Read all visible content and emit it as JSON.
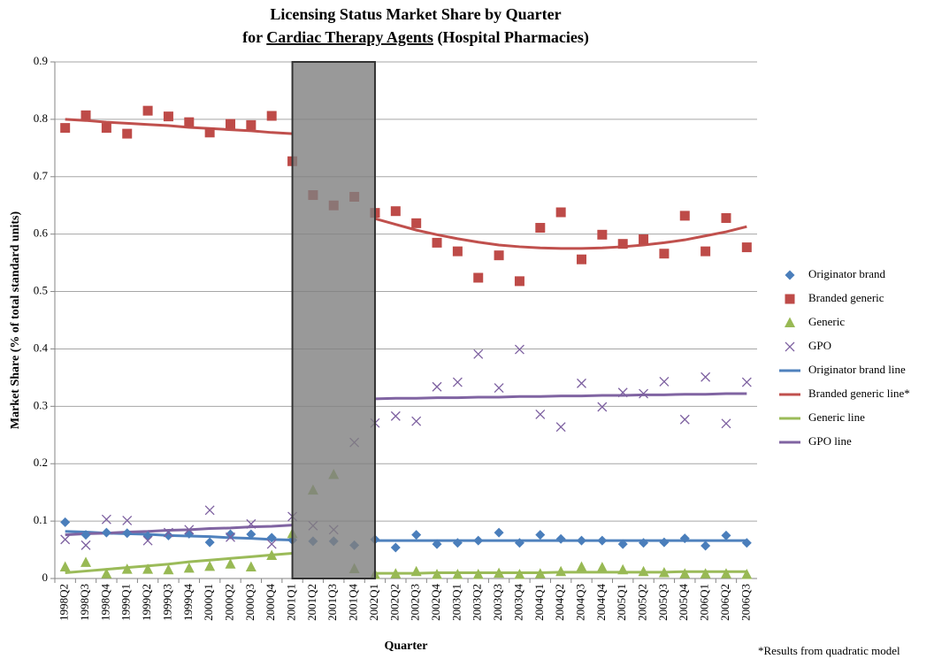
{
  "chart_data": {
    "type": "line",
    "title": "Licensing Status Market Share by Quarter",
    "subtitle_parts": [
      "for ",
      "Cardiac Therapy Agents",
      " (Hospital Pharmacies)"
    ],
    "x_label": "Quarter",
    "y_label": "Market Share (% of total standard units)",
    "footnote": "*Results from quadratic model",
    "categories": [
      "1998Q2",
      "1998Q3",
      "1998Q4",
      "1999Q1",
      "1999Q2",
      "1999Q3",
      "1999Q4",
      "2000Q1",
      "2000Q2",
      "2000Q3",
      "2000Q4",
      "2001Q1",
      "2001Q2",
      "2001Q3",
      "2001Q4",
      "2002Q1",
      "2002Q2",
      "2002Q3",
      "2002Q4",
      "2003Q1",
      "2003Q2",
      "2003Q3",
      "2003Q4",
      "2004Q1",
      "2004Q2",
      "2004Q3",
      "2004Q4",
      "2005Q1",
      "2005Q2",
      "2005Q3",
      "2005Q4",
      "2006Q1",
      "2006Q2",
      "2006Q3"
    ],
    "ylim": [
      0,
      0.9
    ],
    "yticks": [
      0,
      0.1,
      0.2,
      0.3,
      0.4,
      0.5,
      0.6,
      0.7,
      0.8,
      0.9
    ],
    "grid": true,
    "legend": "right",
    "highlight": {
      "from": "2001Q1",
      "to": "2002Q1",
      "color": "#808080"
    },
    "series": [
      {
        "name": "Originator brand",
        "marker": "diamond",
        "color": "#4a7ebb",
        "values": [
          0.098,
          0.076,
          0.08,
          0.079,
          0.074,
          0.075,
          0.078,
          0.063,
          0.077,
          0.077,
          0.071,
          0.067,
          0.065,
          0.065,
          0.058,
          0.068,
          0.054,
          0.076,
          0.06,
          0.062,
          0.066,
          0.08,
          0.062,
          0.076,
          0.069,
          0.066,
          0.066,
          0.06,
          0.062,
          0.063,
          0.07,
          0.057,
          0.075,
          0.062
        ]
      },
      {
        "name": "Branded generic",
        "marker": "square",
        "color": "#be4b48",
        "values": [
          0.785,
          0.807,
          0.785,
          0.775,
          0.815,
          0.805,
          0.795,
          0.777,
          0.792,
          0.79,
          0.806,
          0.727,
          0.668,
          0.65,
          0.665,
          0.637,
          0.64,
          0.619,
          0.585,
          0.57,
          0.524,
          0.563,
          0.518,
          0.611,
          0.638,
          0.556,
          0.599,
          0.583,
          0.591,
          0.566,
          0.632,
          0.57,
          0.628,
          0.577
        ]
      },
      {
        "name": "Generic",
        "marker": "triangle",
        "color": "#98b954",
        "values": [
          0.02,
          0.028,
          0.008,
          0.016,
          0.016,
          0.015,
          0.018,
          0.021,
          0.025,
          0.02,
          0.04,
          0.078,
          0.154,
          0.181,
          0.017,
          0.007,
          0.008,
          0.012,
          0.007,
          0.007,
          0.007,
          0.009,
          0.007,
          0.008,
          0.012,
          0.02,
          0.019,
          0.015,
          0.012,
          0.01,
          0.008,
          0.008,
          0.008,
          0.007
        ]
      },
      {
        "name": "GPO",
        "marker": "x",
        "color": "#7d60a0",
        "values": [
          0.068,
          0.058,
          0.103,
          0.101,
          0.066,
          0.08,
          0.085,
          0.119,
          0.072,
          0.095,
          0.06,
          0.108,
          0.092,
          0.085,
          0.237,
          0.271,
          0.283,
          0.274,
          0.334,
          0.342,
          0.391,
          0.332,
          0.399,
          0.286,
          0.264,
          0.34,
          0.299,
          0.324,
          0.322,
          0.343,
          0.277,
          0.351,
          0.27,
          0.342
        ]
      },
      {
        "name": "Originator brand line",
        "marker": "line",
        "color": "#4f81bd",
        "values": [
          0.082,
          0.081,
          0.079,
          0.078,
          0.077,
          0.075,
          0.074,
          0.073,
          0.071,
          0.07,
          0.068,
          0.067,
          null,
          null,
          null,
          0.066,
          0.066,
          0.066,
          0.066,
          0.066,
          0.066,
          0.066,
          0.066,
          0.066,
          0.066,
          0.066,
          0.066,
          0.066,
          0.066,
          0.066,
          0.066,
          0.066,
          0.066,
          0.066
        ]
      },
      {
        "name": "Branded generic line*",
        "marker": "line",
        "color": "#c0504d",
        "values": [
          0.8,
          0.798,
          0.795,
          0.793,
          0.791,
          0.789,
          0.786,
          0.784,
          0.782,
          0.78,
          0.777,
          0.775,
          null,
          null,
          null,
          0.627,
          0.617,
          0.607,
          0.599,
          0.592,
          0.586,
          0.581,
          0.578,
          0.576,
          0.575,
          0.575,
          0.576,
          0.578,
          0.581,
          0.585,
          0.59,
          0.597,
          0.604,
          0.613
        ]
      },
      {
        "name": "Generic line",
        "marker": "line",
        "color": "#9bbb59",
        "values": [
          0.01,
          0.013,
          0.016,
          0.019,
          0.022,
          0.025,
          0.029,
          0.032,
          0.035,
          0.038,
          0.041,
          0.044,
          null,
          null,
          null,
          0.009,
          0.009,
          0.009,
          0.01,
          0.01,
          0.01,
          0.01,
          0.01,
          0.01,
          0.011,
          0.011,
          0.011,
          0.011,
          0.011,
          0.011,
          0.012,
          0.012,
          0.012,
          0.012
        ]
      },
      {
        "name": "GPO line",
        "marker": "line",
        "color": "#8064a2",
        "values": [
          0.076,
          0.078,
          0.079,
          0.081,
          0.082,
          0.084,
          0.085,
          0.087,
          0.088,
          0.09,
          0.091,
          0.093,
          null,
          null,
          null,
          0.313,
          0.314,
          0.314,
          0.315,
          0.315,
          0.316,
          0.316,
          0.317,
          0.317,
          0.318,
          0.318,
          0.319,
          0.319,
          0.32,
          0.32,
          0.321,
          0.321,
          0.322,
          0.322
        ]
      }
    ]
  }
}
